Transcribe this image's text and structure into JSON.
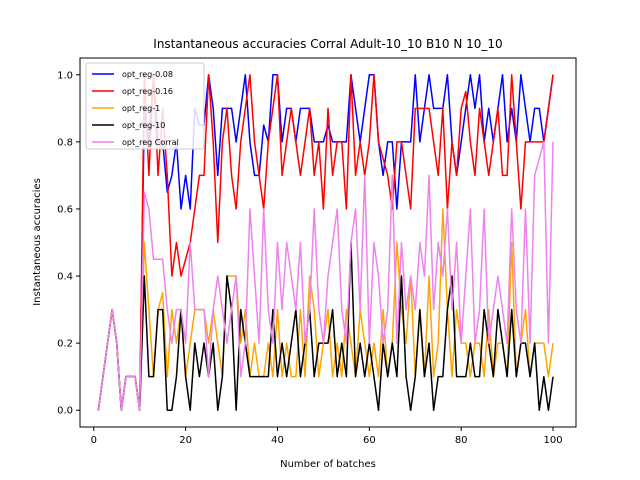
{
  "chart_data": {
    "type": "line",
    "title": "Instantaneous accuracies Corral Adult-10_10 B10 N 10_10",
    "xlabel": "Number of batches",
    "ylabel": "Instantaneous accuracies",
    "xlim": [
      -3,
      105
    ],
    "ylim": [
      -0.05,
      1.05
    ],
    "xticks": [
      0,
      20,
      40,
      60,
      80,
      100
    ],
    "yticks": [
      0.0,
      0.2,
      0.4,
      0.6,
      0.8,
      1.0
    ],
    "legend_position": "upper-left",
    "grid": false,
    "series": [
      {
        "name": "opt_reg-0.08",
        "color": "#0000ff",
        "y": [
          0,
          0.1,
          0.2,
          0.3,
          0.2,
          0,
          0.1,
          0.1,
          0.1,
          0,
          0.9,
          0.8,
          1.0,
          0.8,
          0.8,
          0.65,
          0.7,
          0.8,
          0.6,
          0.7,
          0.6,
          0.9,
          0.85,
          0.85,
          1.0,
          0.9,
          0.7,
          0.9,
          0.9,
          0.9,
          0.8,
          0.9,
          1.0,
          0.8,
          0.7,
          0.7,
          0.85,
          0.8,
          1.0,
          1.0,
          0.8,
          0.9,
          0.9,
          0.8,
          0.9,
          0.9,
          0.9,
          0.8,
          0.8,
          0.8,
          0.85,
          0.8,
          0.8,
          0.8,
          0.8,
          1.0,
          0.9,
          0.8,
          0.9,
          1.0,
          1.0,
          0.8,
          0.7,
          0.8,
          0.8,
          0.6,
          0.8,
          0.8,
          0.8,
          1.0,
          0.8,
          0.9,
          1.0,
          0.9,
          0.9,
          0.9,
          1.0,
          0.8,
          0.7,
          0.8,
          0.9,
          1.0,
          0.9,
          1.0,
          0.8,
          0.9,
          0.8,
          0.9,
          1.0,
          0.8,
          0.9,
          0.8,
          1.0,
          0.9,
          0.8,
          0.9,
          0.9,
          0.8,
          0.9,
          1.0
        ]
      },
      {
        "name": "opt_reg-0.16",
        "color": "#ff0000",
        "y": [
          0,
          0.1,
          0.2,
          0.3,
          0.2,
          0,
          0.1,
          0.1,
          0.1,
          0,
          1.0,
          0.7,
          1.0,
          0.7,
          0.9,
          0.7,
          0.4,
          0.5,
          0.4,
          0.45,
          0.5,
          0.6,
          0.7,
          0.7,
          1.0,
          0.8,
          0.5,
          0.8,
          0.9,
          0.7,
          0.6,
          0.8,
          0.9,
          1.0,
          0.8,
          0.7,
          0.6,
          0.8,
          0.9,
          1.0,
          0.7,
          0.8,
          0.9,
          0.8,
          0.7,
          0.8,
          0.9,
          0.7,
          0.8,
          0.6,
          0.9,
          0.7,
          0.8,
          0.8,
          0.6,
          1.0,
          0.7,
          0.8,
          0.7,
          0.8,
          1.0,
          0.8,
          0.75,
          0.7,
          0.6,
          0.8,
          0.8,
          0.7,
          0.6,
          0.9,
          0.9,
          0.9,
          0.9,
          0.8,
          0.7,
          0.9,
          0.6,
          0.8,
          0.7,
          0.9,
          0.95,
          0.8,
          0.7,
          0.9,
          0.8,
          0.7,
          0.8,
          0.9,
          0.7,
          0.7,
          1.0,
          0.8,
          0.6,
          0.8,
          0.8,
          0.8,
          0.8,
          0.8,
          0.9,
          1.0
        ]
      },
      {
        "name": "opt_reg-1",
        "color": "#ffa500",
        "y": [
          0,
          0.1,
          0.2,
          0.3,
          0.2,
          0,
          0.1,
          0.1,
          0.1,
          0,
          0.5,
          0.3,
          0.1,
          0.3,
          0.35,
          0.1,
          0.3,
          0.2,
          0.3,
          0.1,
          0.2,
          0.3,
          0.3,
          0.3,
          0.2,
          0.3,
          0.2,
          0.1,
          0.4,
          0.4,
          0.4,
          0.2,
          0.3,
          0.1,
          0.2,
          0.1,
          0.1,
          0.2,
          0.1,
          0.3,
          0.1,
          0.2,
          0.1,
          0.1,
          0.3,
          0.1,
          0.4,
          0.3,
          0.1,
          0.2,
          0.3,
          0.1,
          0.2,
          0.1,
          0.3,
          0.2,
          0.1,
          0.3,
          0.2,
          0.1,
          0.2,
          0.1,
          0.3,
          0.1,
          0.2,
          0.5,
          0.3,
          0.2,
          0.4,
          0.1,
          0.3,
          0.1,
          0.4,
          0.1,
          0.2,
          0.6,
          0.3,
          0.1,
          0.3,
          0.2,
          0.2,
          0.1,
          0.2,
          0.2,
          0.1,
          0.3,
          0.1,
          0.2,
          0.2,
          0.1,
          0.5,
          0.1,
          0.2,
          0.3,
          0.1,
          0.2,
          0.2,
          0.2,
          0.1,
          0.2
        ]
      },
      {
        "name": "opt_reg-10",
        "color": "#000000",
        "y": [
          0,
          0.1,
          0.2,
          0.3,
          0.2,
          0,
          0.1,
          0.1,
          0.1,
          0,
          0.4,
          0.1,
          0.1,
          0.3,
          0.3,
          0,
          0,
          0.1,
          0.3,
          0.1,
          0,
          0.2,
          0.1,
          0.2,
          0.1,
          0.2,
          0,
          0.1,
          0.4,
          0.3,
          0,
          0.3,
          0.2,
          0.1,
          0.1,
          0.1,
          0.1,
          0.1,
          0.3,
          0.1,
          0.2,
          0.1,
          0.2,
          0.3,
          0.1,
          0.2,
          0.3,
          0.1,
          0.2,
          0.2,
          0.2,
          0.3,
          0.1,
          0.2,
          0.1,
          0.5,
          0.1,
          0.2,
          0.1,
          0.2,
          0.1,
          0,
          0.2,
          0.1,
          0.2,
          0.1,
          0.4,
          0.1,
          0,
          0.1,
          0.3,
          0.1,
          0.2,
          0,
          0.1,
          0.1,
          0.3,
          0.4,
          0.1,
          0.1,
          0.1,
          0.2,
          0.1,
          0.1,
          0.3,
          0.2,
          0.1,
          0.3,
          0.2,
          0.1,
          0.3,
          0.1,
          0.2,
          0.2,
          0.1,
          0.2,
          0,
          0.1,
          0,
          0.1
        ]
      },
      {
        "name": "opt_reg Corral",
        "color": "#ee82ee",
        "y": [
          0,
          0.1,
          0.2,
          0.3,
          0.2,
          0,
          0.1,
          0.1,
          0.1,
          0,
          0.65,
          0.6,
          0.45,
          0.45,
          0.45,
          0.3,
          0.2,
          0.3,
          0.3,
          0.2,
          0.5,
          0.3,
          0.3,
          0.3,
          0.1,
          0.3,
          0.4,
          0.3,
          0.2,
          0.3,
          0.4,
          0.1,
          0.2,
          0.6,
          0.4,
          0.2,
          0.6,
          0.3,
          0.2,
          0.5,
          0.3,
          0.5,
          0.4,
          0.3,
          0.5,
          0.2,
          0.3,
          0.6,
          0.3,
          0.2,
          0.4,
          0.5,
          0.6,
          0.3,
          0.2,
          0.5,
          0.6,
          0.3,
          0.7,
          0.2,
          0.5,
          0.4,
          0.2,
          0.3,
          0.7,
          0.2,
          0.5,
          0.3,
          0.4,
          0.3,
          0.5,
          0.4,
          0.7,
          0.3,
          0.5,
          0.4,
          0.6,
          0.3,
          0.5,
          0.2,
          0.4,
          0.6,
          0.2,
          0.3,
          0.6,
          0.2,
          0.3,
          0.4,
          0.3,
          0.2,
          0.6,
          0.3,
          0.2,
          0.6,
          0.2,
          0.7,
          0.75,
          0.8,
          0.2,
          0.8
        ]
      }
    ]
  }
}
